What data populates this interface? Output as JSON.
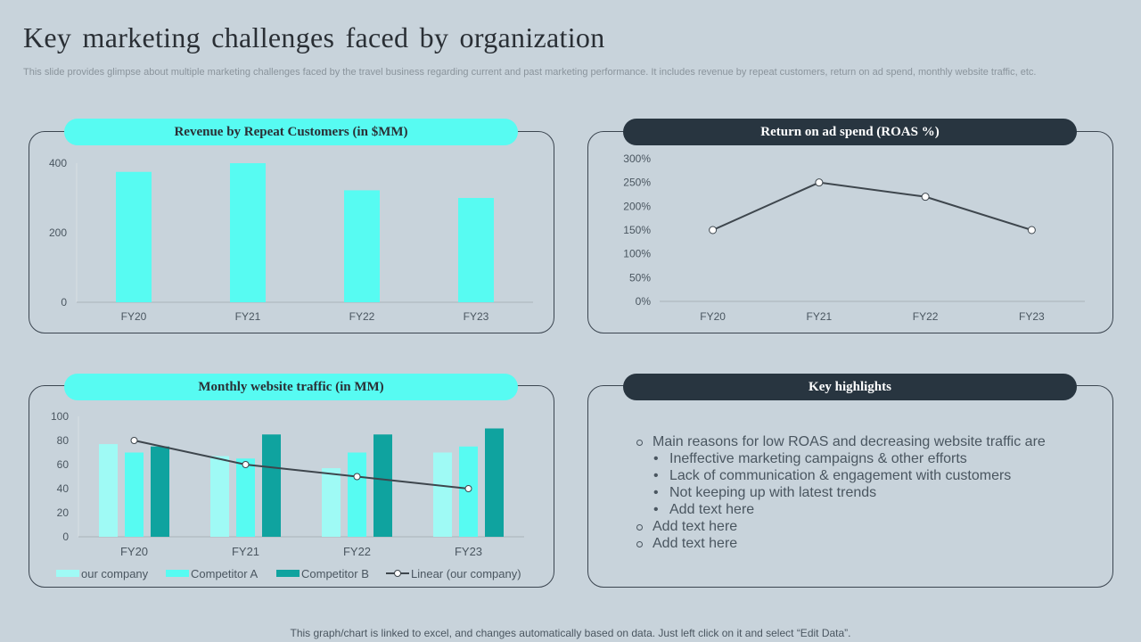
{
  "title": "Key marketing challenges faced by organization",
  "subtitle": "This slide provides glimpse about multiple marketing challenges faced by the travel business regarding current and past marketing performance. It includes revenue by repeat customers, return on ad spend, monthly website traffic, etc.",
  "footer": "This graph/chart is linked to excel,  and changes automatically based on data. Just left click on it and select “Edit Data”.",
  "colors": {
    "cyan": "#57fbf2",
    "light_cyan": "#9ffaf5",
    "teal": "#0fa39f",
    "dark": "#283540",
    "line": "#3e464d"
  },
  "chart_data": [
    {
      "type": "bar",
      "title": "Revenue by Repeat Customers  (in $MM)",
      "categories": [
        "FY20",
        "FY21",
        "FY22",
        "FY23"
      ],
      "values": [
        375,
        400,
        322,
        300
      ],
      "ylim": [
        0,
        400
      ],
      "yticks": [
        0,
        200,
        400
      ],
      "ytick_labels": [
        "0",
        "200",
        "400"
      ]
    },
    {
      "type": "line",
      "title": "Return on ad spend (ROAS %)",
      "categories": [
        "FY20",
        "FY21",
        "FY22",
        "FY23"
      ],
      "values": [
        150,
        250,
        220,
        150
      ],
      "ylim": [
        0,
        300
      ],
      "yticks": [
        0,
        50,
        100,
        150,
        200,
        250,
        300
      ],
      "ytick_labels": [
        "0%",
        "50%",
        "100%",
        "150%",
        "200%",
        "250%",
        "300%"
      ]
    },
    {
      "type": "bar",
      "title": "Monthly website traffic  (in MM)",
      "categories": [
        "FY20",
        "FY21",
        "FY22",
        "FY23"
      ],
      "ylim": [
        0,
        100
      ],
      "yticks": [
        0,
        20,
        40,
        60,
        80,
        100
      ],
      "ytick_labels": [
        "0",
        "20",
        "40",
        "60",
        "80",
        "100"
      ],
      "series": [
        {
          "name": "our company",
          "values": [
            77,
            67,
            57,
            70
          ]
        },
        {
          "name": "Competitor A",
          "values": [
            70,
            65,
            70,
            75
          ]
        },
        {
          "name": "Competitor B",
          "values": [
            75,
            85,
            85,
            90
          ]
        }
      ],
      "trendline": {
        "name": "Linear (our company)",
        "values": [
          80,
          60,
          50,
          40
        ]
      },
      "legend": "bottom"
    }
  ],
  "highlights": {
    "title": "Key highlights",
    "items": [
      {
        "level": 1,
        "text": "Main reasons for low ROAS and decreasing website traffic are"
      },
      {
        "level": 2,
        "text": "Ineffective  marketing  campaigns & other efforts"
      },
      {
        "level": 2,
        "text": "Lack of communication & engagement with customers"
      },
      {
        "level": 2,
        "text": "Not keeping up with latest trends"
      },
      {
        "level": 2,
        "text": "Add text here"
      },
      {
        "level": 1,
        "text": "Add text here"
      },
      {
        "level": 1,
        "text": "Add text here"
      }
    ]
  }
}
